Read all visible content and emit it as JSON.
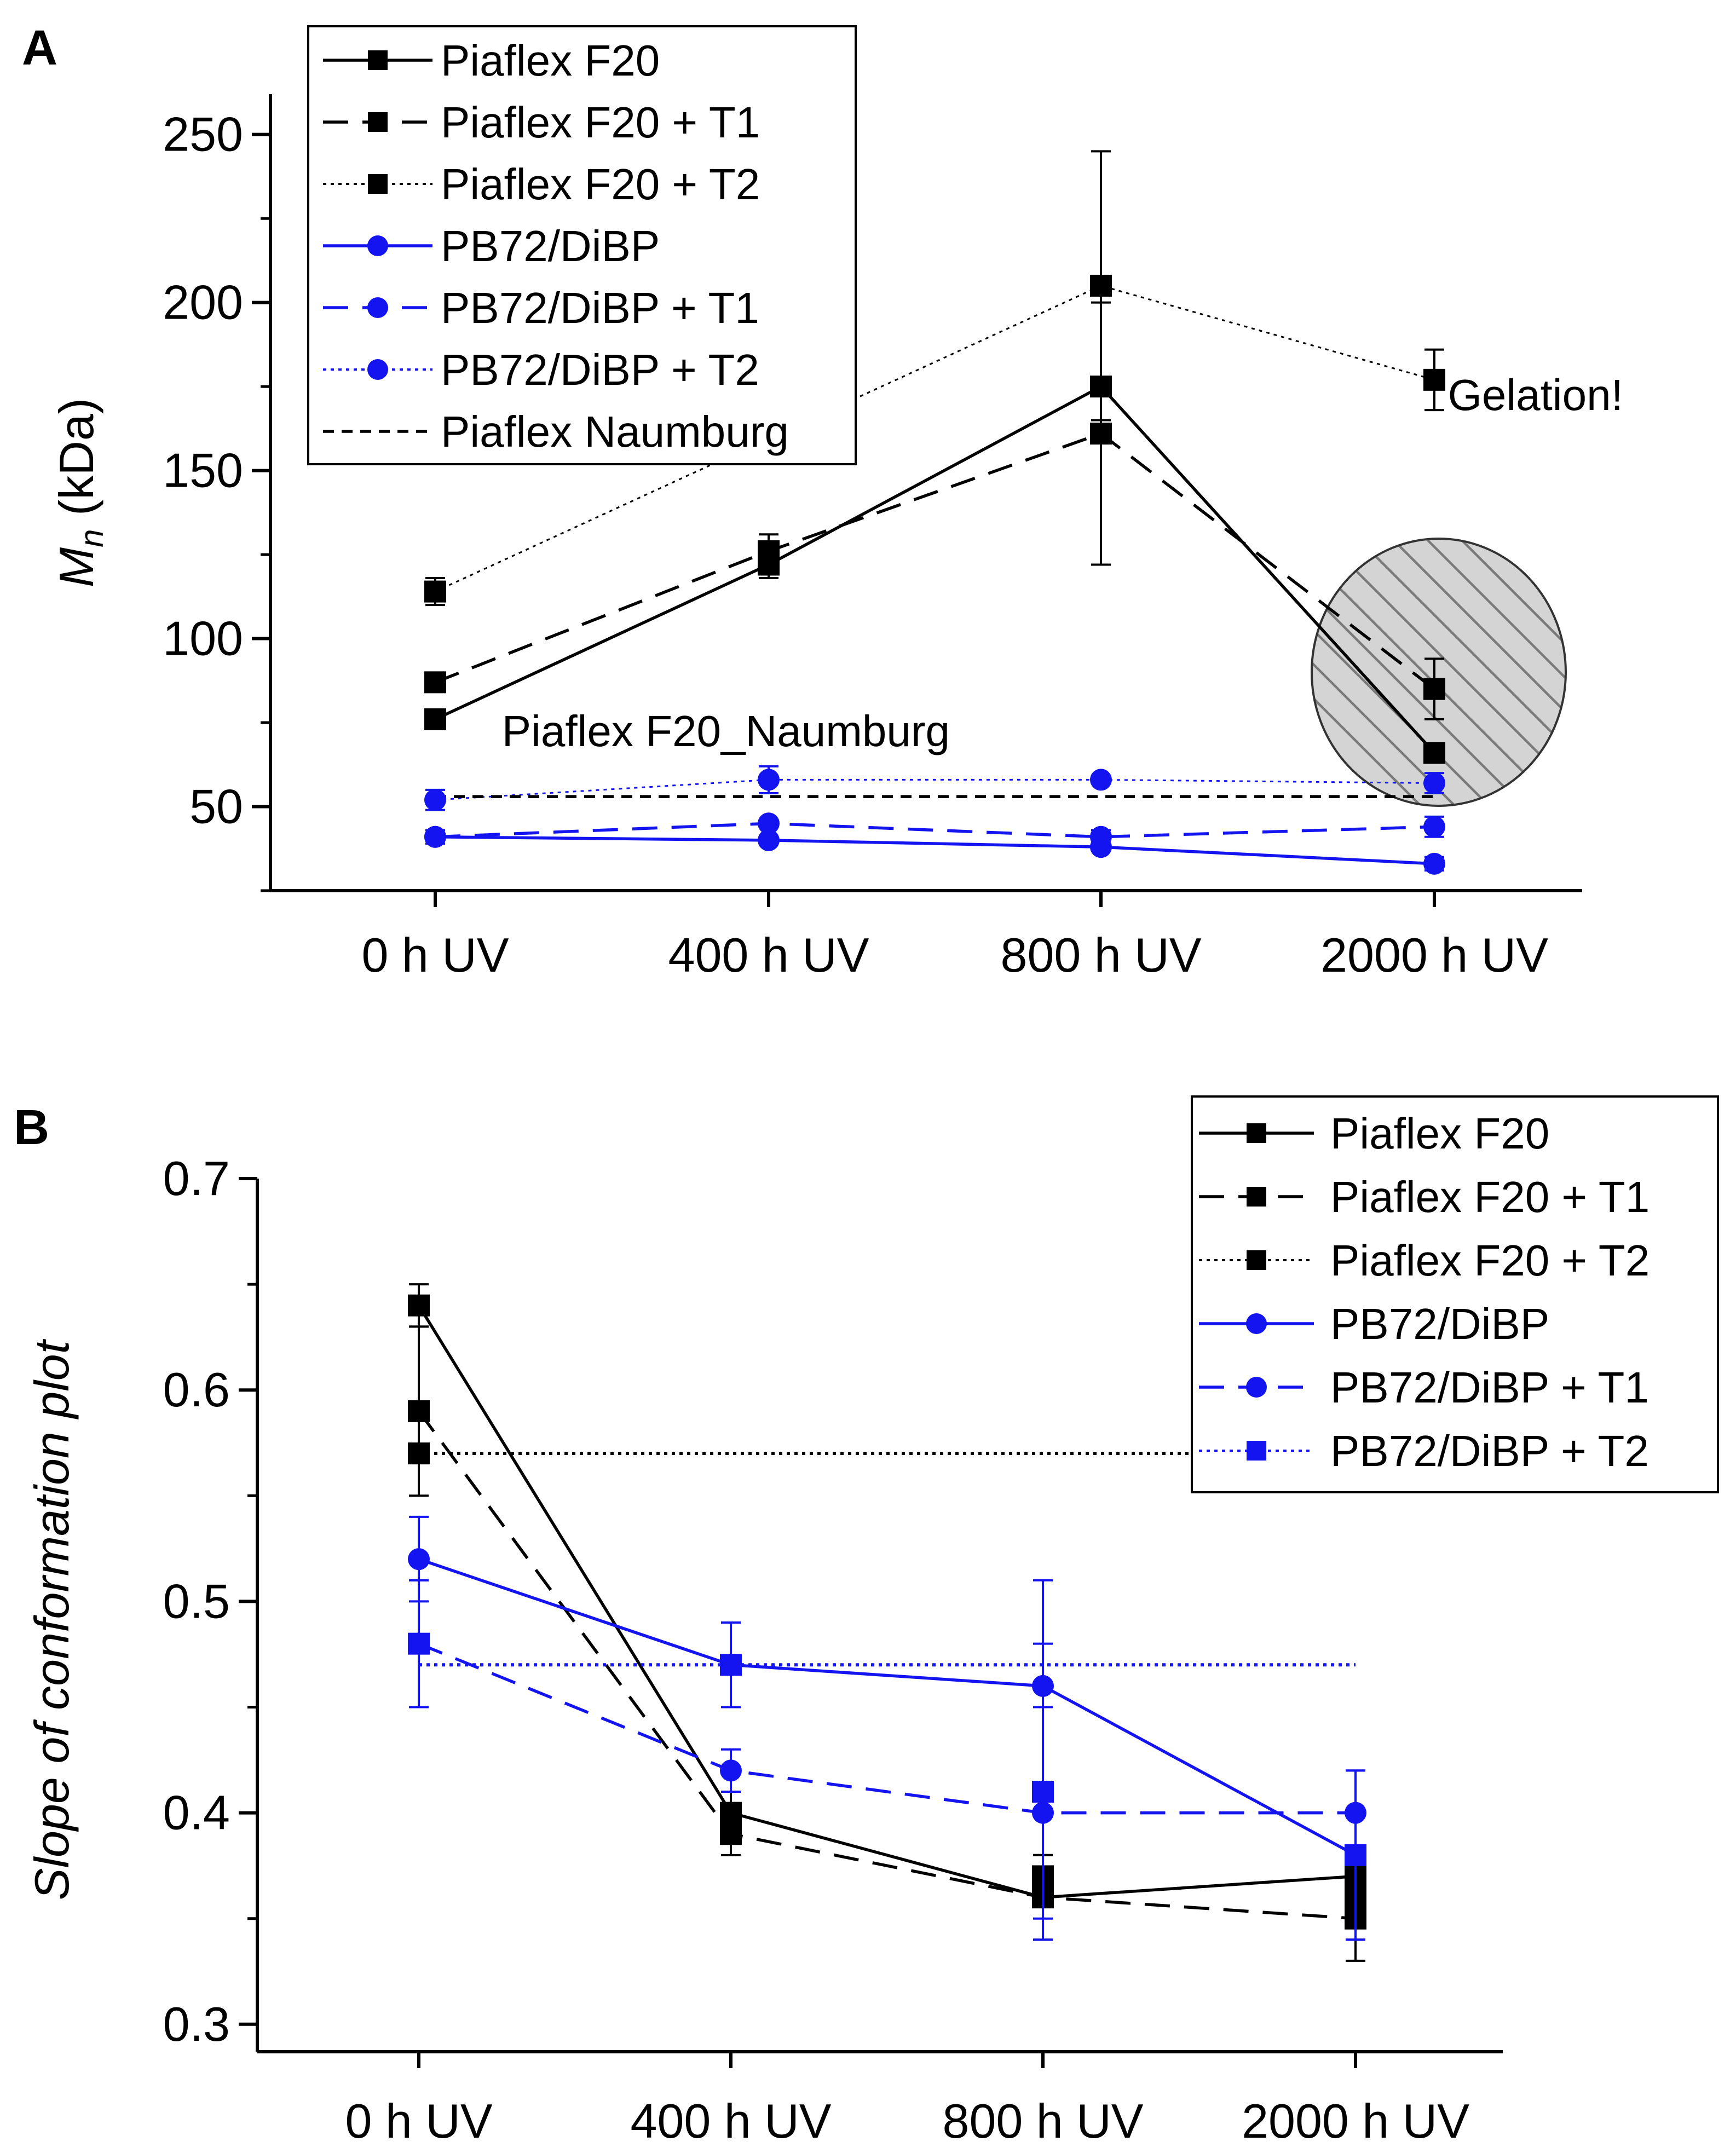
{
  "colors": {
    "black": "#000000",
    "blue": "#1414f0",
    "hatch": "#7a7a7a",
    "hatchFill": "#d4d4d4"
  },
  "chart_data": [
    {
      "panel_label": "A",
      "type": "line",
      "title": "",
      "xlabel": "",
      "ylabel": "M",
      "ylabel_sub": "n",
      "ylabel_unit": " (kDa)",
      "categories": [
        "0 h UV",
        "400 h UV",
        "800 h UV",
        "2000 h UV"
      ],
      "ylim": [
        25,
        262
      ],
      "yticks": [
        50,
        100,
        150,
        200,
        250
      ],
      "legend_position": "top-left",
      "series": [
        {
          "name": "Piaflex F20",
          "color": "black",
          "marker": "square",
          "dash": "solid",
          "values": [
            76,
            122,
            175,
            66
          ],
          "errors": [
            0,
            4,
            0,
            0
          ]
        },
        {
          "name": "Piaflex F20 + T1",
          "color": "black",
          "marker": "square",
          "dash": "dashed",
          "values": [
            87,
            126,
            161,
            85
          ],
          "errors": [
            0,
            5,
            39,
            9
          ]
        },
        {
          "name": "Piaflex F20 + T2",
          "color": "black",
          "marker": "square",
          "dash": "dotted",
          "values": [
            114,
            null,
            205,
            177
          ],
          "errors": [
            4,
            0,
            40,
            9
          ]
        },
        {
          "name": "PB72/DiBP",
          "color": "blue",
          "marker": "circle",
          "dash": "solid",
          "values": [
            41,
            40,
            38,
            33
          ],
          "errors": [
            2,
            1,
            1,
            2
          ]
        },
        {
          "name": "PB72/DiBP + T1",
          "color": "blue",
          "marker": "circle",
          "dash": "dashed",
          "values": [
            41,
            45,
            41,
            44
          ],
          "errors": [
            2,
            1,
            2,
            3
          ]
        },
        {
          "name": "PB72/DiBP + T2",
          "color": "blue",
          "marker": "circle",
          "dash": "dotted",
          "values": [
            52,
            58,
            58,
            57
          ],
          "errors": [
            3,
            4,
            1,
            3
          ]
        },
        {
          "name": "Piaflex Naumburg",
          "color": "black",
          "marker": "none",
          "dash": "shortdash",
          "values": [
            53,
            53,
            53,
            53
          ],
          "errors": [
            0,
            0,
            0,
            0
          ]
        }
      ],
      "annotations": [
        {
          "text": "Piaflex F20_Naumburg",
          "x": 0.2,
          "y": 68
        },
        {
          "text": "Gelation!",
          "x": 3.3,
          "y": 168
        }
      ],
      "hatched_region": {
        "x": 3,
        "y": 90
      }
    },
    {
      "panel_label": "B",
      "type": "line",
      "title": "",
      "xlabel": "",
      "ylabel": "Slope of conformation plot",
      "categories": [
        "0 h UV",
        "400 h UV",
        "800 h UV",
        "2000 h UV"
      ],
      "ylim": [
        0.287,
        0.7
      ],
      "yticks": [
        0.3,
        0.4,
        0.5,
        0.6,
        0.7
      ],
      "legend_position": "top-right",
      "series": [
        {
          "name": "Piaflex F20",
          "color": "black",
          "marker": "square",
          "dash": "solid",
          "values": [
            0.64,
            0.4,
            0.36,
            0.37
          ],
          "errors": [
            0.01,
            0.01,
            0.02,
            0.03
          ]
        },
        {
          "name": "Piaflex F20 + T1",
          "color": "black",
          "marker": "square",
          "dash": "dashed",
          "values": [
            0.59,
            0.39,
            0.36,
            0.35
          ],
          "errors": [
            0.04,
            0.01,
            0.02,
            0.02
          ]
        },
        {
          "name": "Piaflex F20 + T2",
          "color": "black",
          "marker": "square",
          "dash": "dotted",
          "values": [
            0.57,
            null,
            0.37,
            0.36
          ],
          "errors": [
            0,
            0,
            0.01,
            0.02
          ]
        },
        {
          "name": "PB72/DiBP",
          "color": "blue",
          "marker": "circle",
          "dash": "solid",
          "values": [
            0.52,
            0.47,
            0.46,
            0.38
          ],
          "errors": [
            0.02,
            0.02,
            0.05,
            0.04
          ]
        },
        {
          "name": "PB72/DiBP + T1",
          "color": "blue",
          "marker": "circle",
          "dash": "dashed",
          "values": [
            0.48,
            0.42,
            0.4,
            0.4
          ],
          "errors": [
            0.03,
            0.01,
            0.05,
            0.02
          ]
        },
        {
          "name": "PB72/DiBP + T2",
          "color": "blue",
          "marker": "square",
          "dash": "dotted",
          "values": [
            0.48,
            0.47,
            0.41,
            0.38
          ],
          "errors": [
            0.03,
            0.0,
            0.07,
            0.04
          ]
        }
      ]
    }
  ]
}
